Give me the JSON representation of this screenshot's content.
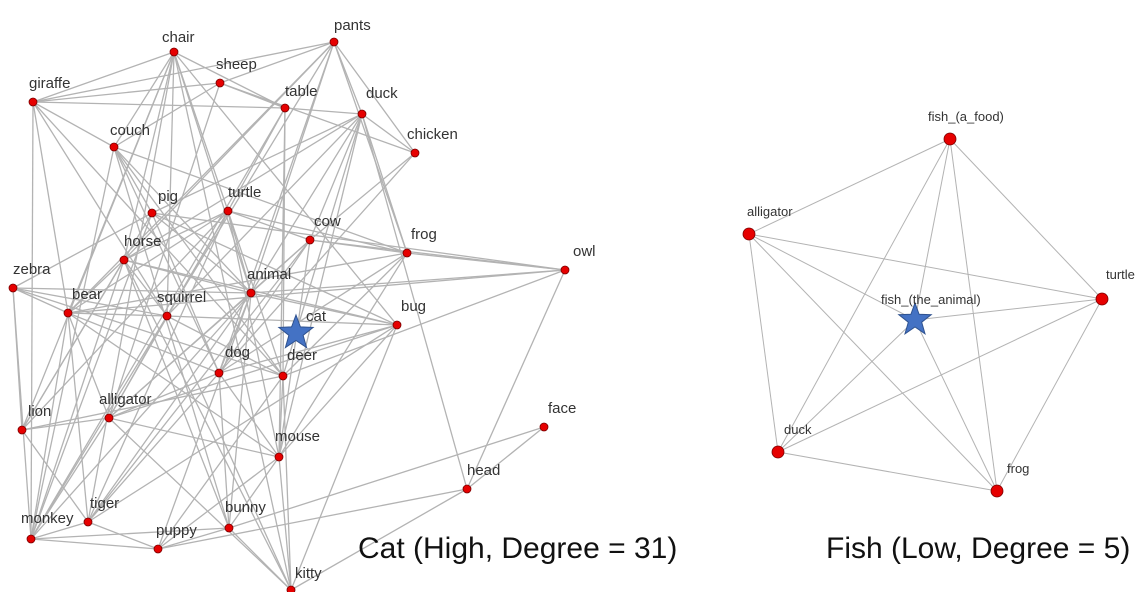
{
  "colors": {
    "edge": "#b3b3b3",
    "node": "#e60000",
    "node_stroke": "#7a0000",
    "star": "#4472c4",
    "star_stroke": "#2f528f"
  },
  "graphs": [
    {
      "id": "cat",
      "caption": "Cat (High, Degree = 31)",
      "center": "cat",
      "nodes": [
        {
          "id": "chair",
          "label": "chair"
        },
        {
          "id": "pants",
          "label": "pants"
        },
        {
          "id": "sheep",
          "label": "sheep"
        },
        {
          "id": "giraffe",
          "label": "giraffe"
        },
        {
          "id": "table",
          "label": "table"
        },
        {
          "id": "duck",
          "label": "duck"
        },
        {
          "id": "couch",
          "label": "couch"
        },
        {
          "id": "chicken",
          "label": "chicken"
        },
        {
          "id": "pig",
          "label": "pig"
        },
        {
          "id": "turtle",
          "label": "turtle"
        },
        {
          "id": "cow",
          "label": "cow"
        },
        {
          "id": "horse",
          "label": "horse"
        },
        {
          "id": "frog",
          "label": "frog"
        },
        {
          "id": "owl",
          "label": "owl"
        },
        {
          "id": "zebra",
          "label": "zebra"
        },
        {
          "id": "animal",
          "label": "animal"
        },
        {
          "id": "bear",
          "label": "bear"
        },
        {
          "id": "squirrel",
          "label": "squirrel"
        },
        {
          "id": "cat",
          "label": "cat"
        },
        {
          "id": "bug",
          "label": "bug"
        },
        {
          "id": "dog",
          "label": "dog"
        },
        {
          "id": "deer",
          "label": "deer"
        },
        {
          "id": "alligator",
          "label": "alligator"
        },
        {
          "id": "lion",
          "label": "lion"
        },
        {
          "id": "face",
          "label": "face"
        },
        {
          "id": "mouse",
          "label": "mouse"
        },
        {
          "id": "head",
          "label": "head"
        },
        {
          "id": "tiger",
          "label": "tiger"
        },
        {
          "id": "monkey",
          "label": "monkey"
        },
        {
          "id": "bunny",
          "label": "bunny"
        },
        {
          "id": "puppy",
          "label": "puppy"
        },
        {
          "id": "kitty",
          "label": "kitty"
        }
      ]
    },
    {
      "id": "fish",
      "caption": "Fish (Low, Degree = 5)",
      "center": "fish_the_animal",
      "nodes": [
        {
          "id": "fish_a_food",
          "label": "fish_(a_food)"
        },
        {
          "id": "alligator",
          "label": "alligator"
        },
        {
          "id": "fish_the_animal",
          "label": "fish_(the_animal)"
        },
        {
          "id": "turtle",
          "label": "turtle"
        },
        {
          "id": "duck",
          "label": "duck"
        },
        {
          "id": "frog",
          "label": "frog"
        }
      ]
    }
  ]
}
